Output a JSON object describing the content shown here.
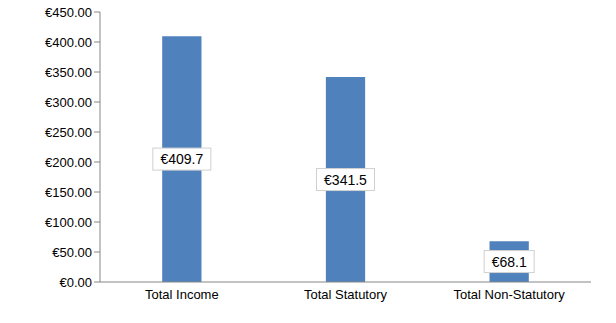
{
  "chart_data": {
    "type": "bar",
    "categories": [
      "Total Income",
      "Total Statutory",
      "Total Non-Statutory"
    ],
    "values": [
      409.7,
      341.5,
      68.1
    ],
    "value_labels": [
      "€409.7",
      "€341.5",
      "€68.1"
    ],
    "color": "#4f81bd",
    "ylim": [
      0,
      450
    ],
    "yticks": [
      {
        "value": 0,
        "label": "€0.00"
      },
      {
        "value": 50,
        "label": "€50.00"
      },
      {
        "value": 100,
        "label": "€100.00"
      },
      {
        "value": 150,
        "label": "€150.00"
      },
      {
        "value": 200,
        "label": "€200.00"
      },
      {
        "value": 250,
        "label": "€250.00"
      },
      {
        "value": 300,
        "label": "€300.00"
      },
      {
        "value": 350,
        "label": "€350.00"
      },
      {
        "value": 400,
        "label": "€400.00"
      },
      {
        "value": 450,
        "label": "€450.00"
      }
    ],
    "grid": false,
    "data_labels": true
  }
}
